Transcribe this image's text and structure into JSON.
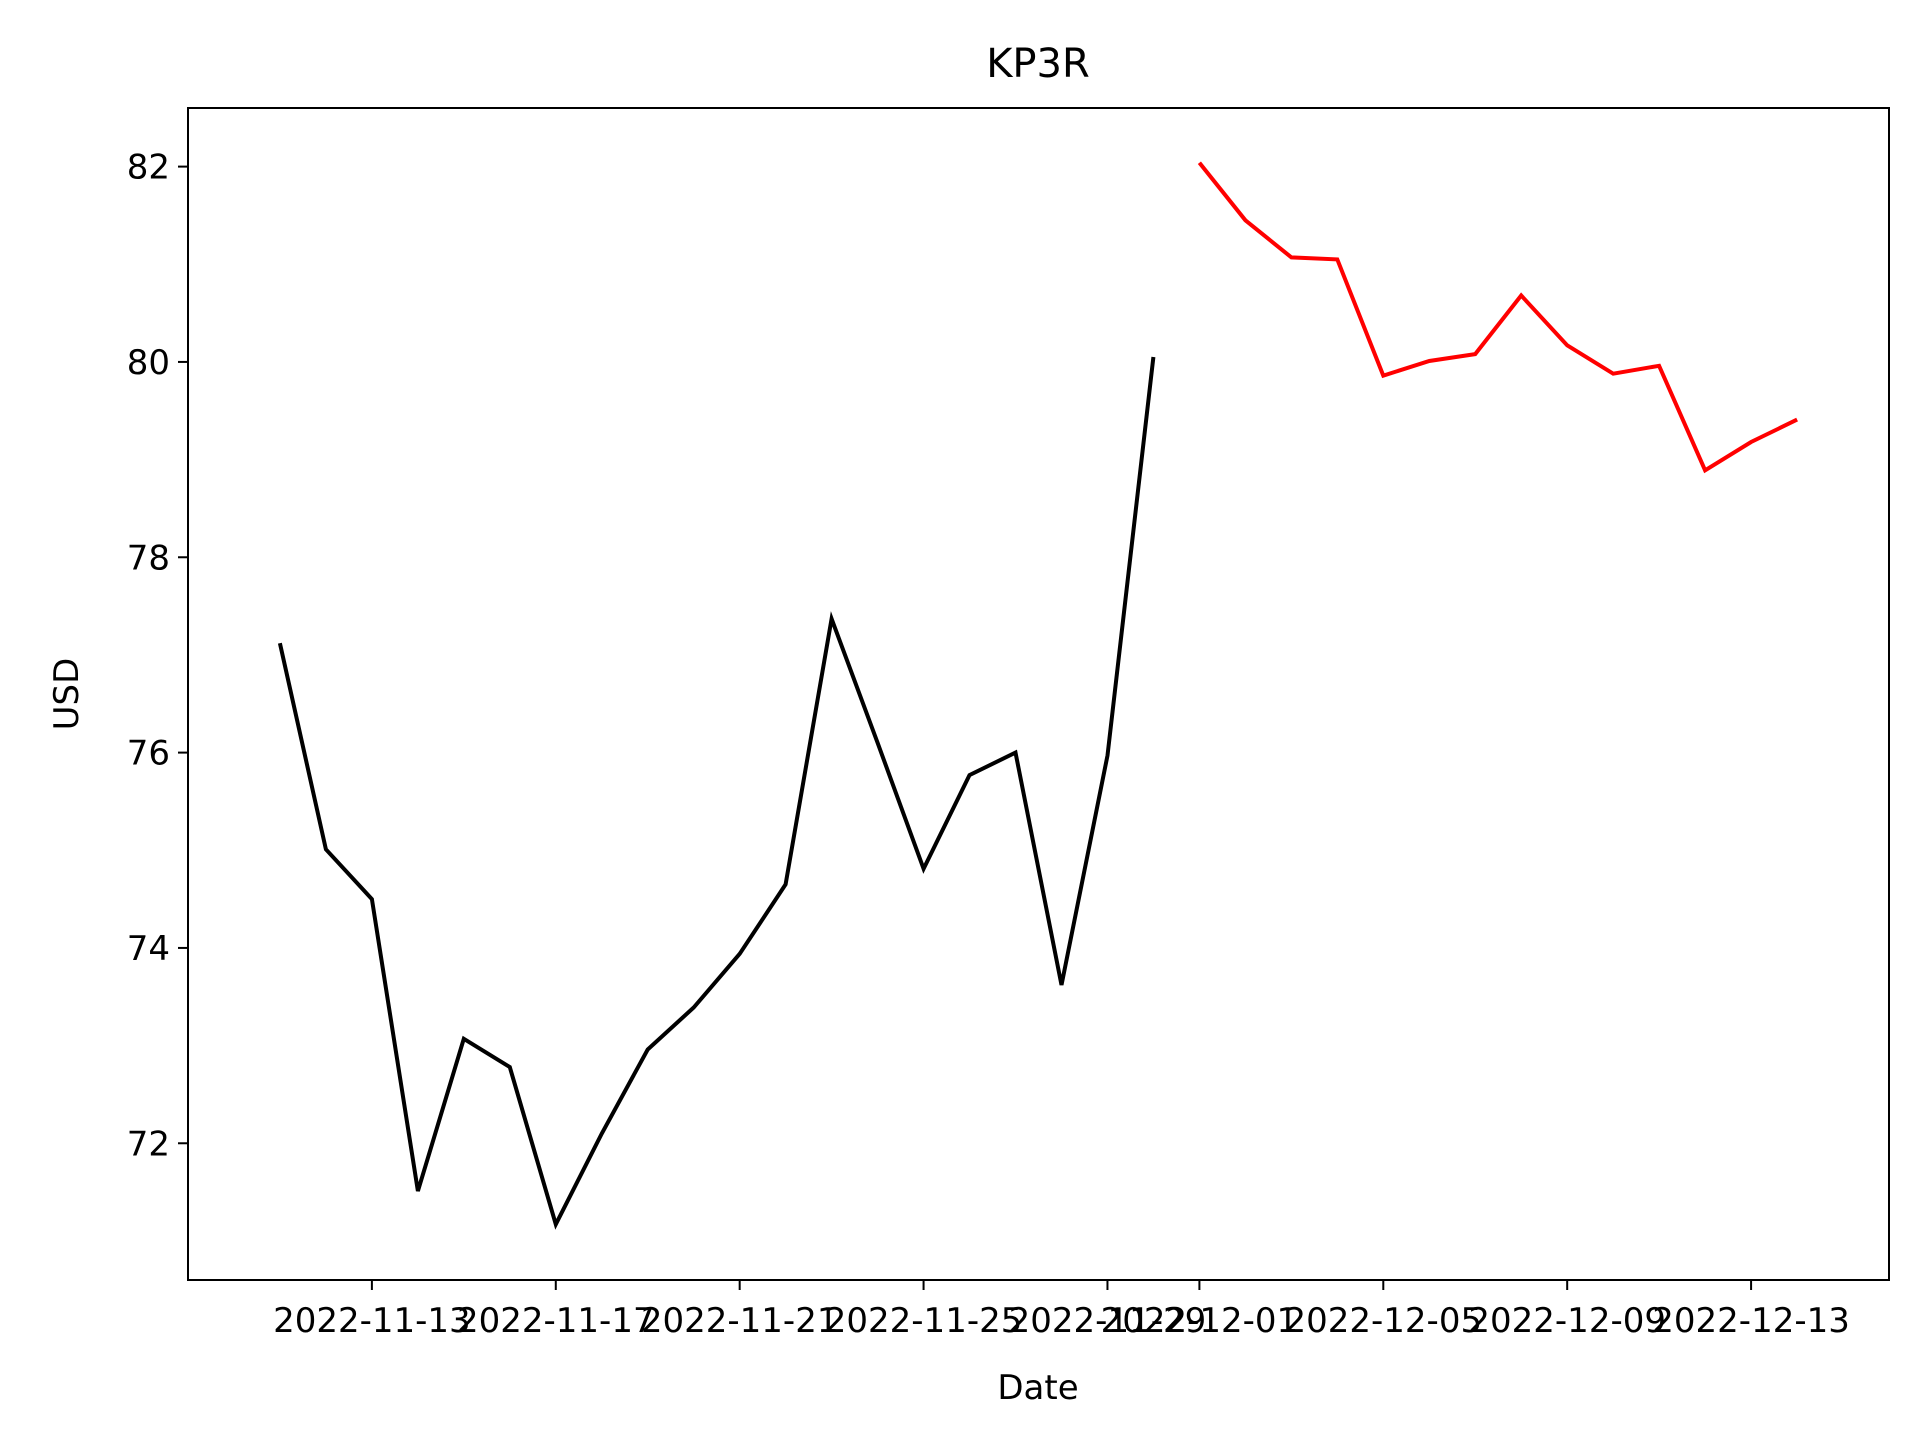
{
  "chart_data": {
    "type": "line",
    "title": "KP3R",
    "xlabel": "Date",
    "ylabel": "USD",
    "x_ticks": [
      "2022-11-13",
      "2022-11-17",
      "2022-11-21",
      "2022-11-25",
      "2022-11-29",
      "2022-12-01",
      "2022-12-05",
      "2022-12-09",
      "2022-12-13"
    ],
    "y_ticks": [
      72,
      74,
      76,
      78,
      80,
      82
    ],
    "xlim": [
      "2022-11-09",
      "2022-12-16"
    ],
    "ylim": [
      70.6,
      82.6
    ],
    "grid": false,
    "series": [
      {
        "color": "#000000",
        "x": [
          "2022-11-11",
          "2022-11-12",
          "2022-11-13",
          "2022-11-14",
          "2022-11-15",
          "2022-11-16",
          "2022-11-17",
          "2022-11-18",
          "2022-11-19",
          "2022-11-20",
          "2022-11-21",
          "2022-11-22",
          "2022-11-23",
          "2022-11-24",
          "2022-11-25",
          "2022-11-26",
          "2022-11-27",
          "2022-11-28",
          "2022-11-29",
          "2022-11-30"
        ],
        "y": [
          77.12,
          75.01,
          74.5,
          71.51,
          73.07,
          72.78,
          71.17,
          72.1,
          72.96,
          73.39,
          73.94,
          74.65,
          77.37,
          76.1,
          74.81,
          75.77,
          76.0,
          73.62,
          75.97,
          80.05
        ]
      },
      {
        "color": "#ff0000",
        "x": [
          "2022-12-01",
          "2022-12-02",
          "2022-12-03",
          "2022-12-04",
          "2022-12-05",
          "2022-12-06",
          "2022-12-07",
          "2022-12-08",
          "2022-12-09",
          "2022-12-10",
          "2022-12-11",
          "2022-12-12",
          "2022-12-13",
          "2022-12-14"
        ],
        "y": [
          82.04,
          81.45,
          81.07,
          81.05,
          79.86,
          80.01,
          80.08,
          80.68,
          80.17,
          79.88,
          79.96,
          78.89,
          79.18,
          79.41
        ]
      }
    ]
  }
}
